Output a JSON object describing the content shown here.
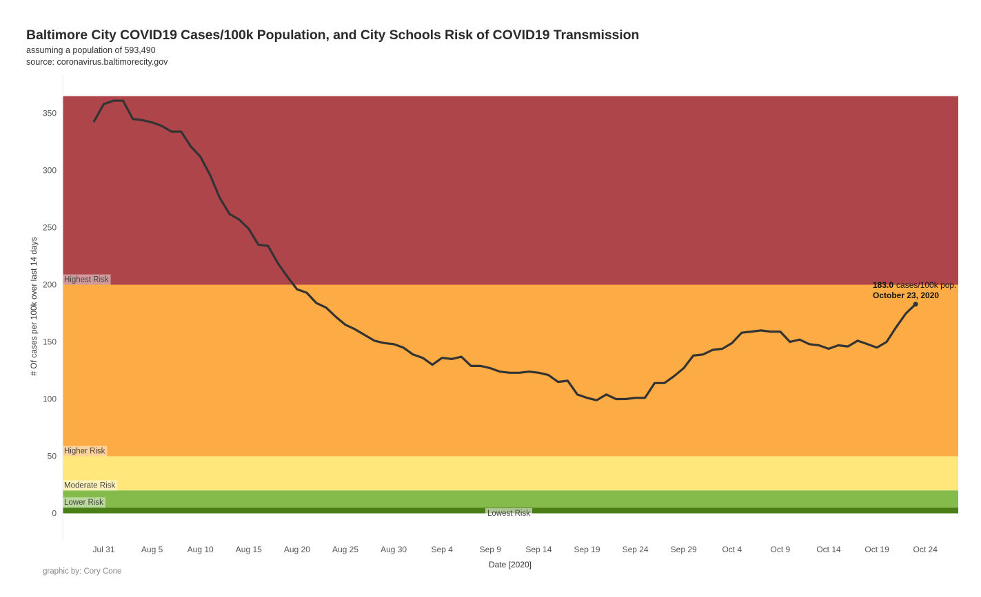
{
  "header": {
    "title": "Baltimore City COVID19 Cases/100k Population, and City Schools Risk of COVID19 Transmission",
    "subtitle_1": "assuming a population of 593,490",
    "subtitle_2": "source: coronavirus.baltimorecity.gov"
  },
  "footer": {
    "credit": "graphic by: Cory Cone"
  },
  "colors": {
    "highest": "#ae454a",
    "higher": "#fdab45",
    "moderate": "#ffe77b",
    "lower": "#84bb4b",
    "lowest": "#4a7f16",
    "line": "#333333"
  },
  "chart_data": {
    "type": "line",
    "xlabel": "Date [2020]",
    "ylabel": "# Of cases per 100k over last 14 days",
    "ylim": [
      -5,
      365
    ],
    "xlim": [
      "2020-07-26",
      "2020-10-27"
    ],
    "yticks": [
      0,
      50,
      100,
      150,
      200,
      250,
      300,
      350
    ],
    "xticks": [
      {
        "date": "2020-07-31",
        "label": "Jul 31"
      },
      {
        "date": "2020-08-05",
        "label": "Aug 5"
      },
      {
        "date": "2020-08-10",
        "label": "Aug 10"
      },
      {
        "date": "2020-08-15",
        "label": "Aug 15"
      },
      {
        "date": "2020-08-20",
        "label": "Aug 20"
      },
      {
        "date": "2020-08-25",
        "label": "Aug 25"
      },
      {
        "date": "2020-08-30",
        "label": "Aug 30"
      },
      {
        "date": "2020-09-04",
        "label": "Sep 4"
      },
      {
        "date": "2020-09-09",
        "label": "Sep 9"
      },
      {
        "date": "2020-09-14",
        "label": "Sep 14"
      },
      {
        "date": "2020-09-19",
        "label": "Sep 19"
      },
      {
        "date": "2020-09-24",
        "label": "Sep 24"
      },
      {
        "date": "2020-09-29",
        "label": "Sep 29"
      },
      {
        "date": "2020-10-04",
        "label": "Oct 4"
      },
      {
        "date": "2020-10-09",
        "label": "Oct 9"
      },
      {
        "date": "2020-10-14",
        "label": "Oct 14"
      },
      {
        "date": "2020-10-19",
        "label": "Oct 19"
      },
      {
        "date": "2020-10-24",
        "label": "Oct 24"
      }
    ],
    "bands": [
      {
        "label": "Highest Risk",
        "from": 200,
        "to": 365,
        "color": "#ae454a"
      },
      {
        "label": "Higher Risk",
        "from": 50,
        "to": 200,
        "color": "#fdab45"
      },
      {
        "label": "Moderate Risk",
        "from": 20,
        "to": 50,
        "color": "#ffe77b"
      },
      {
        "label": "Lower Risk",
        "from": 5,
        "to": 20,
        "color": "#84bb4b"
      },
      {
        "label": "Lowest Risk",
        "from": 0,
        "to": 5,
        "color": "#4a7f16"
      }
    ],
    "series": [
      {
        "x": [
          "2020-07-30",
          "2020-07-31",
          "2020-08-01",
          "2020-08-02",
          "2020-08-03",
          "2020-08-04",
          "2020-08-05",
          "2020-08-06",
          "2020-08-07",
          "2020-08-08",
          "2020-08-09",
          "2020-08-10",
          "2020-08-11",
          "2020-08-12",
          "2020-08-13",
          "2020-08-14",
          "2020-08-15",
          "2020-08-16",
          "2020-08-17",
          "2020-08-18",
          "2020-08-19",
          "2020-08-20",
          "2020-08-21",
          "2020-08-22",
          "2020-08-23",
          "2020-08-24",
          "2020-08-25",
          "2020-08-26",
          "2020-08-27",
          "2020-08-28",
          "2020-08-29",
          "2020-08-30",
          "2020-08-31",
          "2020-09-01",
          "2020-09-02",
          "2020-09-03",
          "2020-09-04",
          "2020-09-05",
          "2020-09-06",
          "2020-09-07",
          "2020-09-08",
          "2020-09-09",
          "2020-09-10",
          "2020-09-11",
          "2020-09-12",
          "2020-09-13",
          "2020-09-14",
          "2020-09-15",
          "2020-09-16",
          "2020-09-17",
          "2020-09-18",
          "2020-09-19",
          "2020-09-20",
          "2020-09-21",
          "2020-09-22",
          "2020-09-23",
          "2020-09-24",
          "2020-09-25",
          "2020-09-26",
          "2020-09-27",
          "2020-09-28",
          "2020-09-29",
          "2020-09-30",
          "2020-10-01",
          "2020-10-02",
          "2020-10-03",
          "2020-10-04",
          "2020-10-05",
          "2020-10-06",
          "2020-10-07",
          "2020-10-08",
          "2020-10-09",
          "2020-10-10",
          "2020-10-11",
          "2020-10-12",
          "2020-10-13",
          "2020-10-14",
          "2020-10-15",
          "2020-10-16",
          "2020-10-17",
          "2020-10-18",
          "2020-10-19",
          "2020-10-20",
          "2020-10-21",
          "2020-10-22",
          "2020-10-23"
        ],
        "y": [
          343,
          358,
          361,
          361,
          345,
          344,
          342,
          339,
          334,
          334,
          321,
          312,
          296,
          276,
          262,
          257,
          249,
          235,
          234,
          219,
          207,
          196,
          193,
          184,
          180,
          172,
          165,
          161,
          156,
          151,
          149,
          148,
          145,
          139,
          136,
          130,
          136,
          135,
          137,
          129,
          129,
          127,
          124,
          123,
          123,
          124,
          123,
          121,
          115,
          116,
          104,
          101,
          99,
          104,
          100,
          100,
          101,
          101,
          114,
          114,
          120,
          127,
          138,
          139,
          143,
          144,
          149,
          158,
          159,
          160,
          159,
          159,
          150,
          152,
          148,
          147,
          144,
          147,
          146,
          151,
          148,
          145,
          150,
          163,
          175,
          183
        ]
      }
    ],
    "annotation": {
      "value": "183.0",
      "unit": "cases/100k pop.",
      "date": "October 23, 2020"
    }
  }
}
